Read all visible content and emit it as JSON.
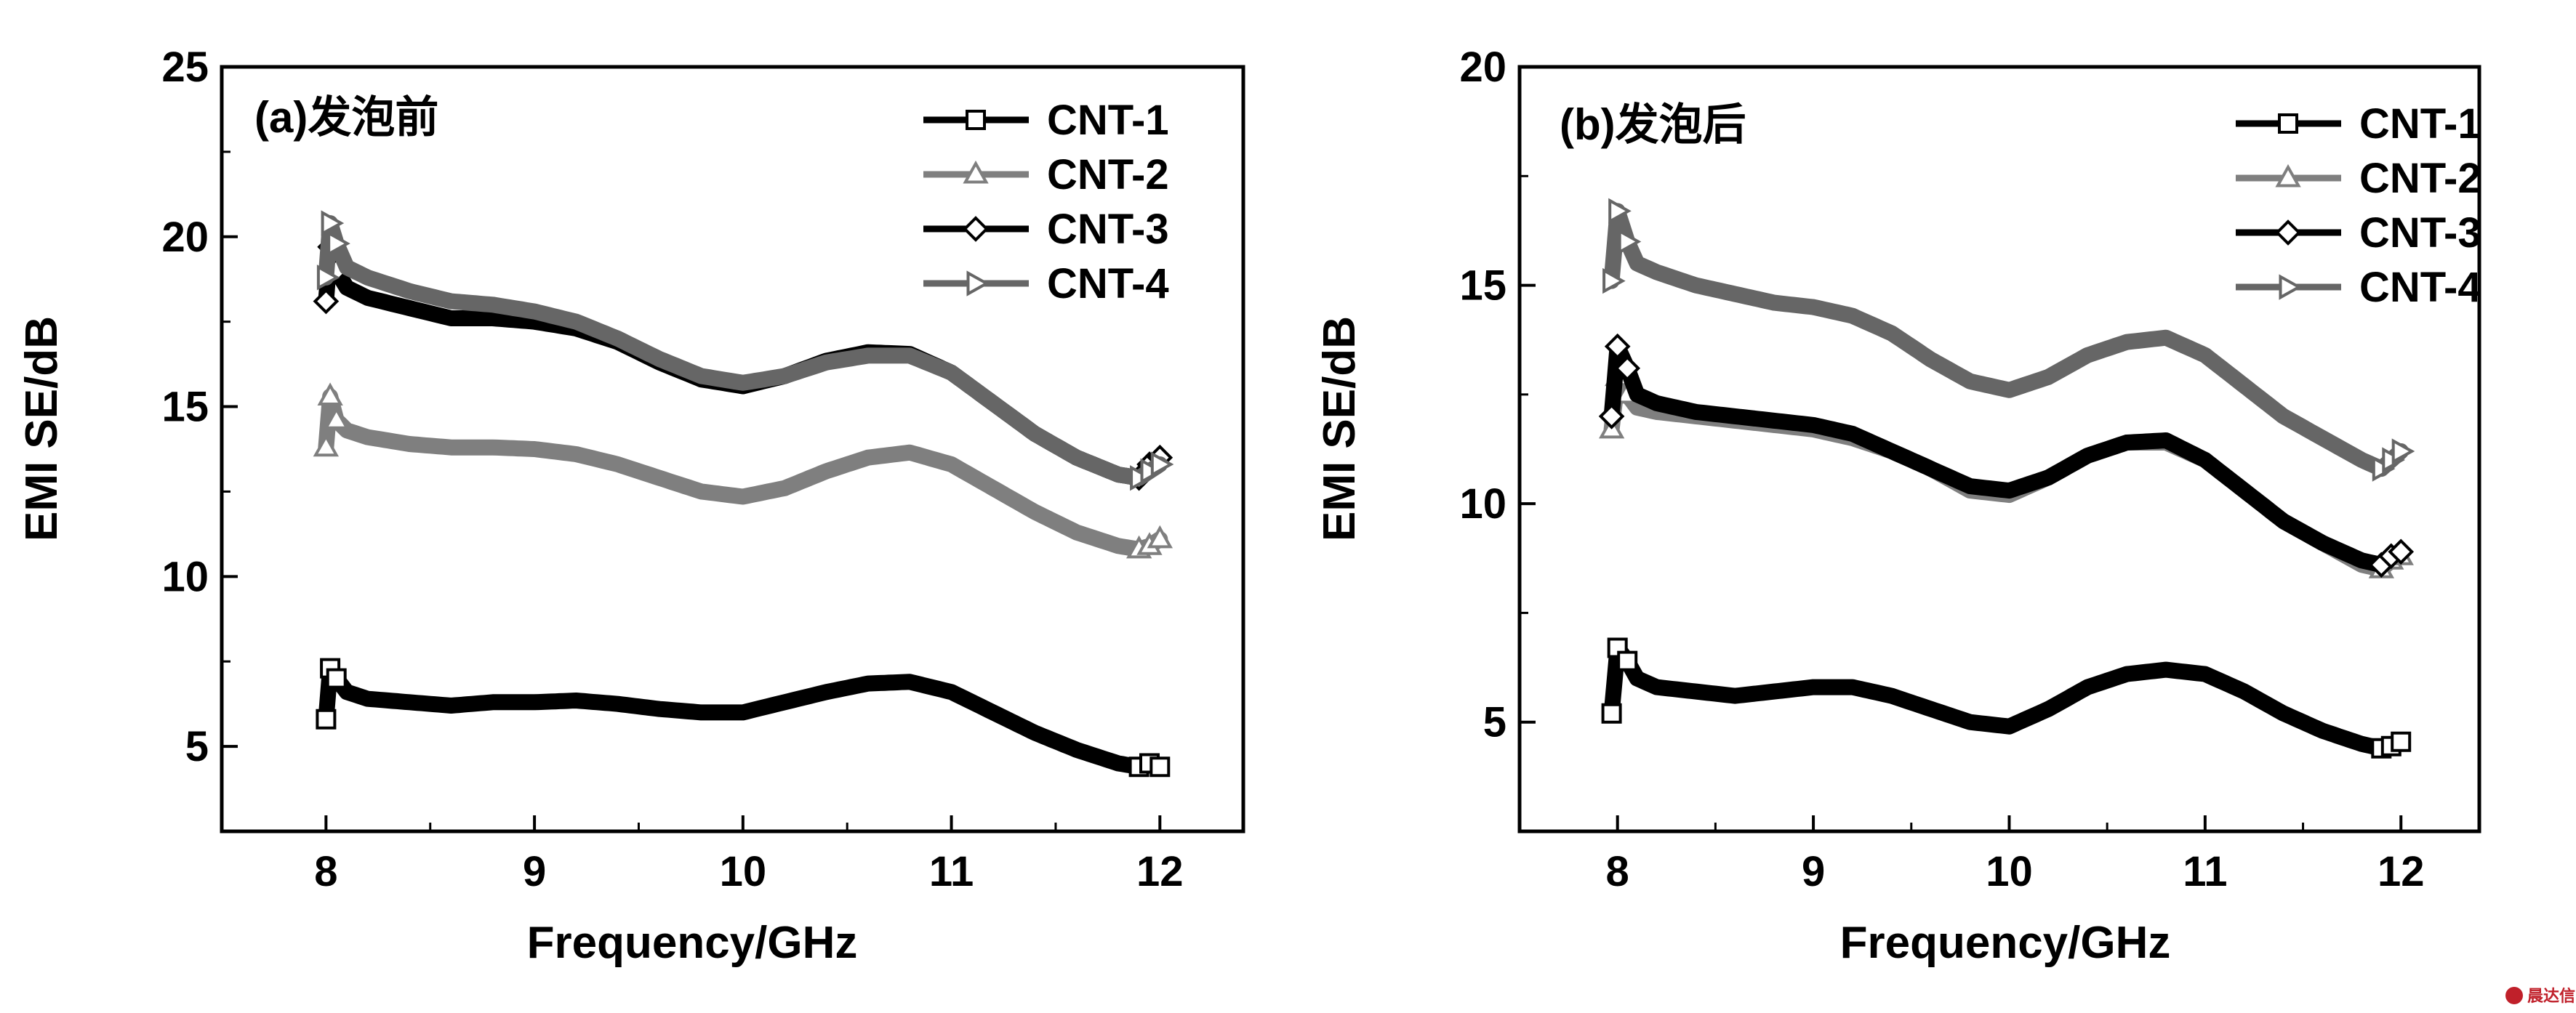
{
  "chart_data": [
    {
      "type": "scatter",
      "panel_label": "(a)发泡前",
      "xlabel": "Frequency/GHz",
      "ylabel": "EMI SE/dB",
      "xlim": [
        7.5,
        12.4
      ],
      "ylim": [
        2.5,
        25
      ],
      "xticks": [
        "8",
        "9",
        "10",
        "11",
        "12"
      ],
      "yticks": [
        "5",
        "10",
        "15",
        "20",
        "25"
      ],
      "legend_position": "top-right",
      "series": [
        {
          "name": "CNT-1",
          "marker": "square",
          "color": "#000000",
          "x": [
            8.0,
            8.02,
            8.05,
            8.1,
            8.2,
            8.4,
            8.6,
            8.8,
            9.0,
            9.2,
            9.4,
            9.6,
            9.8,
            10.0,
            10.2,
            10.4,
            10.6,
            10.8,
            11.0,
            11.2,
            11.4,
            11.6,
            11.8,
            11.9,
            11.95,
            12.0
          ],
          "y": [
            5.8,
            7.3,
            7.0,
            6.6,
            6.4,
            6.3,
            6.2,
            6.3,
            6.3,
            6.35,
            6.25,
            6.1,
            6.0,
            6.0,
            6.3,
            6.6,
            6.85,
            6.9,
            6.6,
            6.0,
            5.4,
            4.9,
            4.5,
            4.4,
            4.5,
            4.4
          ]
        },
        {
          "name": "CNT-2",
          "marker": "triangle-up",
          "color": "#7f7f7f",
          "x": [
            8.0,
            8.02,
            8.05,
            8.1,
            8.2,
            8.4,
            8.6,
            8.8,
            9.0,
            9.2,
            9.4,
            9.6,
            9.8,
            10.0,
            10.2,
            10.4,
            10.6,
            10.8,
            11.0,
            11.2,
            11.4,
            11.6,
            11.8,
            11.9,
            11.95,
            12.0
          ],
          "y": [
            13.8,
            15.3,
            14.6,
            14.3,
            14.1,
            13.9,
            13.8,
            13.8,
            13.75,
            13.6,
            13.3,
            12.9,
            12.5,
            12.35,
            12.6,
            13.1,
            13.5,
            13.65,
            13.3,
            12.6,
            11.9,
            11.3,
            10.9,
            10.8,
            10.9,
            11.1
          ]
        },
        {
          "name": "CNT-3",
          "marker": "diamond",
          "color": "#000000",
          "x": [
            8.0,
            8.02,
            8.05,
            8.1,
            8.2,
            8.4,
            8.6,
            8.8,
            9.0,
            9.2,
            9.4,
            9.6,
            9.8,
            10.0,
            10.2,
            10.4,
            10.6,
            10.8,
            11.0,
            11.2,
            11.4,
            11.6,
            11.8,
            11.9,
            11.95,
            12.0
          ],
          "y": [
            18.1,
            19.7,
            19.0,
            18.5,
            18.2,
            17.9,
            17.6,
            17.6,
            17.5,
            17.3,
            16.9,
            16.3,
            15.8,
            15.6,
            15.9,
            16.35,
            16.6,
            16.55,
            16.0,
            15.1,
            14.2,
            13.5,
            13.0,
            12.9,
            13.3,
            13.5
          ]
        },
        {
          "name": "CNT-4",
          "marker": "triangle-right",
          "color": "#666666",
          "x": [
            8.0,
            8.02,
            8.05,
            8.1,
            8.2,
            8.4,
            8.6,
            8.8,
            9.0,
            9.2,
            9.4,
            9.6,
            9.8,
            10.0,
            10.2,
            10.4,
            10.6,
            10.8,
            11.0,
            11.2,
            11.4,
            11.6,
            11.8,
            11.9,
            11.95,
            12.0
          ],
          "y": [
            18.8,
            20.4,
            19.8,
            19.1,
            18.8,
            18.4,
            18.1,
            18.0,
            17.8,
            17.5,
            17.0,
            16.4,
            15.9,
            15.7,
            15.9,
            16.3,
            16.5,
            16.5,
            16.0,
            15.1,
            14.2,
            13.5,
            13.0,
            12.9,
            13.1,
            13.3
          ]
        }
      ]
    },
    {
      "type": "scatter",
      "panel_label": "(b)发泡后",
      "xlabel": "Frequency/GHz",
      "ylabel": "EMI SE/dB",
      "xlim": [
        7.5,
        12.4
      ],
      "ylim": [
        2.5,
        20
      ],
      "xticks": [
        "8",
        "9",
        "10",
        "11",
        "12"
      ],
      "yticks": [
        "5",
        "10",
        "15",
        "20"
      ],
      "legend_position": "top-right",
      "series": [
        {
          "name": "CNT-1",
          "marker": "square",
          "color": "#000000",
          "x": [
            7.97,
            8.0,
            8.05,
            8.1,
            8.2,
            8.4,
            8.6,
            8.8,
            9.0,
            9.2,
            9.4,
            9.6,
            9.8,
            10.0,
            10.2,
            10.4,
            10.6,
            10.8,
            11.0,
            11.2,
            11.4,
            11.6,
            11.8,
            11.9,
            11.95,
            12.0
          ],
          "y": [
            5.2,
            6.7,
            6.4,
            6.0,
            5.8,
            5.7,
            5.6,
            5.7,
            5.8,
            5.8,
            5.6,
            5.3,
            5.0,
            4.9,
            5.3,
            5.8,
            6.1,
            6.2,
            6.1,
            5.7,
            5.2,
            4.8,
            4.5,
            4.4,
            4.45,
            4.55
          ]
        },
        {
          "name": "CNT-2",
          "marker": "triangle-up",
          "color": "#7f7f7f",
          "x": [
            7.97,
            8.0,
            8.05,
            8.1,
            8.2,
            8.4,
            8.6,
            8.8,
            9.0,
            9.2,
            9.4,
            9.6,
            9.8,
            10.0,
            10.2,
            10.4,
            10.6,
            10.8,
            11.0,
            11.2,
            11.4,
            11.6,
            11.8,
            11.9,
            11.95,
            12.0
          ],
          "y": [
            11.7,
            12.9,
            12.5,
            12.2,
            12.1,
            12.0,
            11.9,
            11.8,
            11.7,
            11.5,
            11.2,
            10.8,
            10.3,
            10.2,
            10.6,
            11.1,
            11.4,
            11.4,
            11.0,
            10.3,
            9.6,
            9.1,
            8.6,
            8.5,
            8.7,
            8.8
          ]
        },
        {
          "name": "CNT-3",
          "marker": "diamond",
          "color": "#000000",
          "x": [
            7.97,
            8.0,
            8.05,
            8.1,
            8.2,
            8.4,
            8.6,
            8.8,
            9.0,
            9.2,
            9.4,
            9.6,
            9.8,
            10.0,
            10.2,
            10.4,
            10.6,
            10.8,
            11.0,
            11.2,
            11.4,
            11.6,
            11.8,
            11.9,
            11.95,
            12.0
          ],
          "y": [
            12.0,
            13.6,
            13.1,
            12.5,
            12.3,
            12.1,
            12.0,
            11.9,
            11.8,
            11.6,
            11.2,
            10.8,
            10.4,
            10.3,
            10.6,
            11.1,
            11.4,
            11.45,
            11.0,
            10.3,
            9.6,
            9.1,
            8.7,
            8.6,
            8.8,
            8.9
          ]
        },
        {
          "name": "CNT-4",
          "marker": "triangle-right",
          "color": "#666666",
          "x": [
            7.97,
            8.0,
            8.05,
            8.1,
            8.2,
            8.4,
            8.6,
            8.8,
            9.0,
            9.2,
            9.4,
            9.6,
            9.8,
            10.0,
            10.2,
            10.4,
            10.6,
            10.8,
            11.0,
            11.2,
            11.4,
            11.6,
            11.8,
            11.9,
            11.95,
            12.0
          ],
          "y": [
            15.1,
            16.7,
            16.0,
            15.5,
            15.3,
            15.0,
            14.8,
            14.6,
            14.5,
            14.3,
            13.9,
            13.3,
            12.8,
            12.6,
            12.9,
            13.4,
            13.7,
            13.8,
            13.4,
            12.7,
            12.0,
            11.5,
            11.0,
            10.8,
            11.0,
            11.2
          ]
        }
      ]
    }
  ],
  "watermark": {
    "text": "晨达信",
    "color": "#c0202a"
  }
}
